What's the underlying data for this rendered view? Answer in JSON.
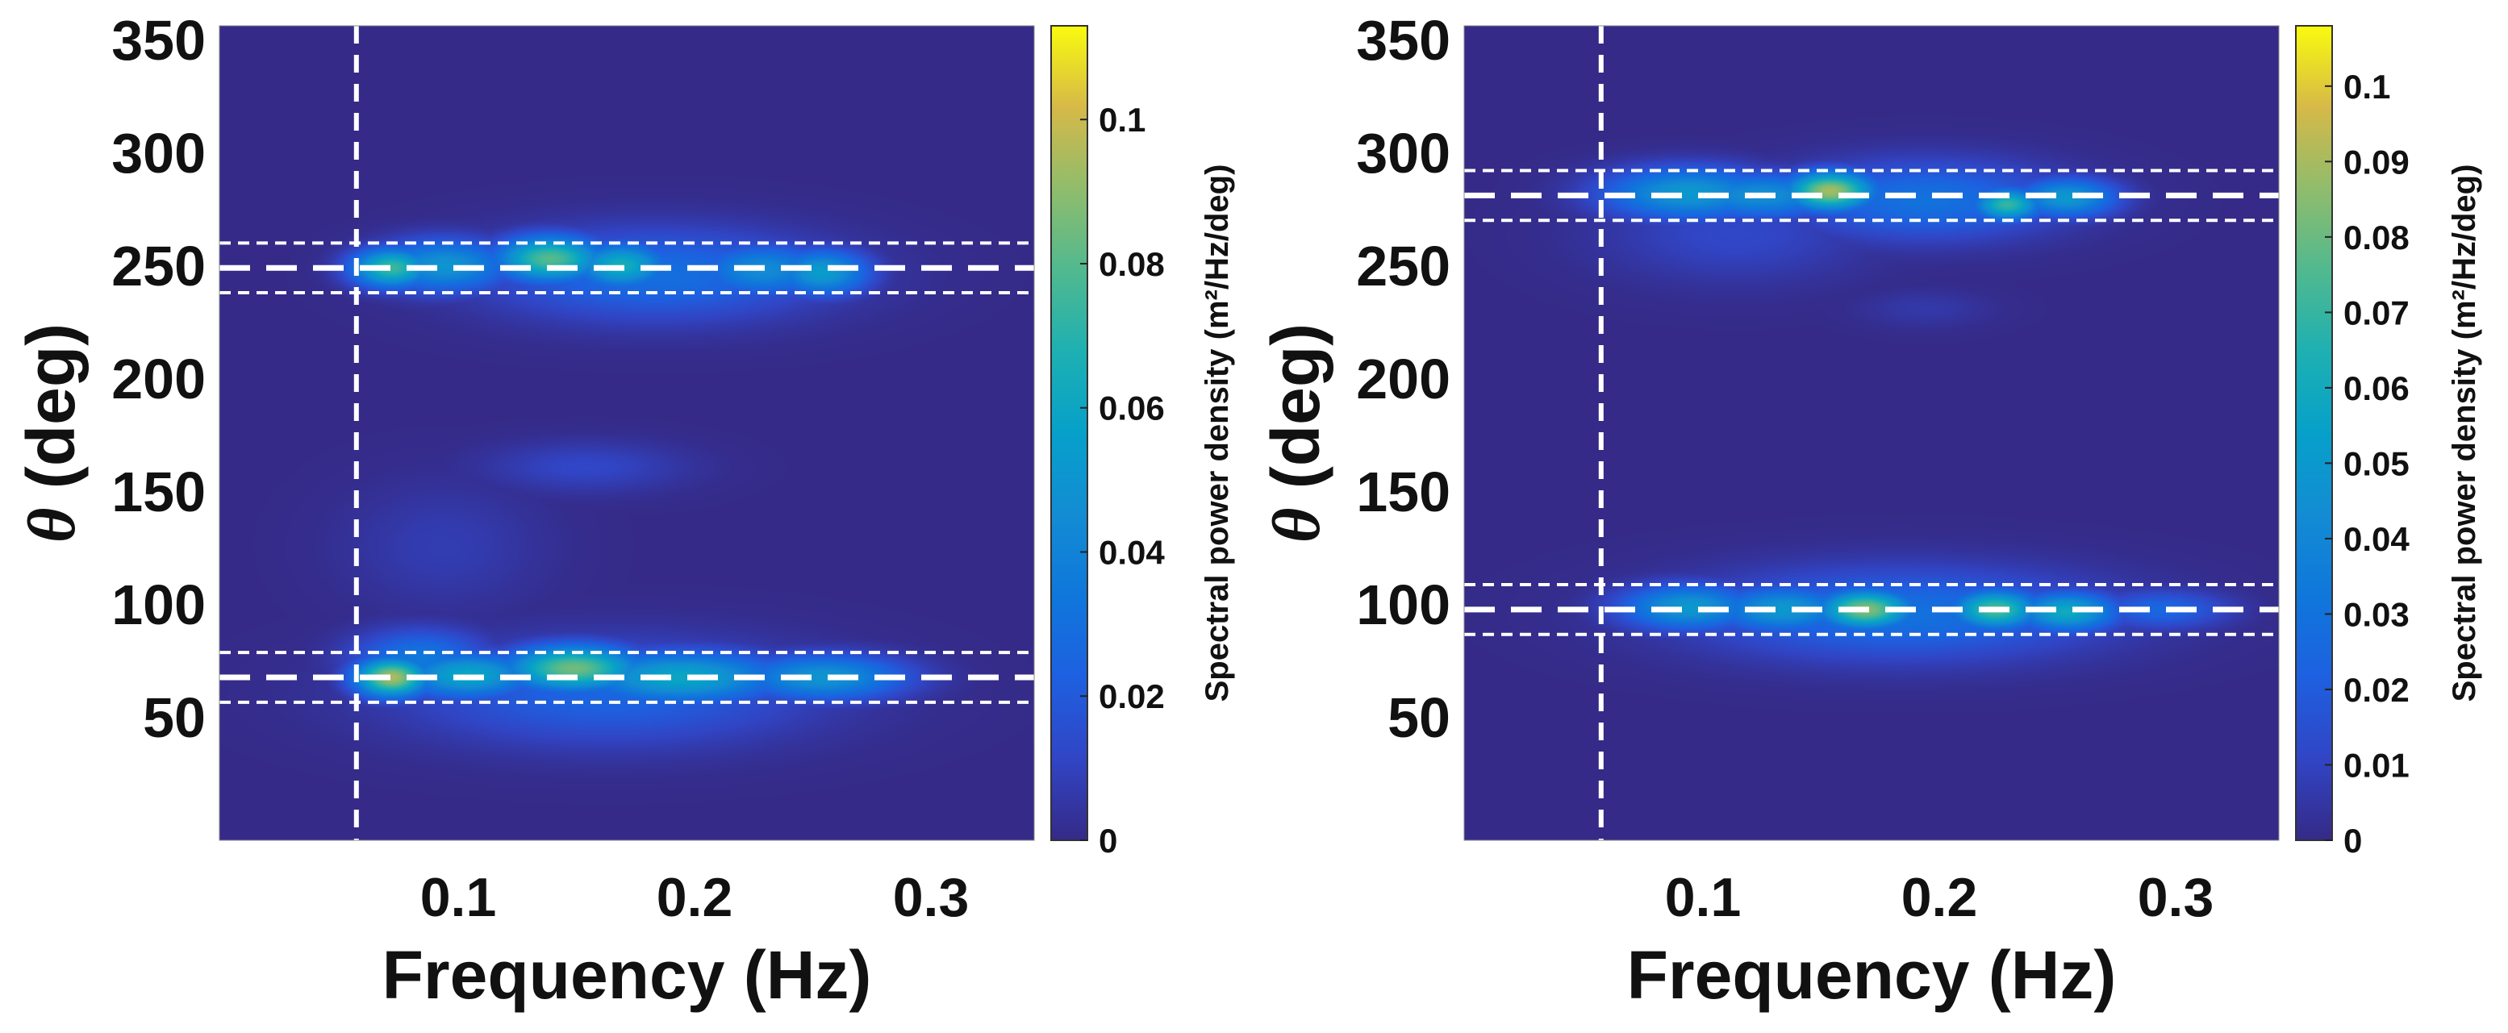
{
  "chart_data": [
    {
      "type": "heatmap",
      "title": "",
      "xlabel": "Frequency (Hz)",
      "ylabel_symbol": "θ",
      "ylabel_rest": " (deg)",
      "xlim": [
        0.005,
        0.35
      ],
      "ylim": [
        0,
        360
      ],
      "x_ticks": [
        0.1,
        0.2,
        0.3
      ],
      "x_tick_labels": [
        "0.1",
        "0.2",
        "0.3"
      ],
      "y_ticks": [
        50,
        100,
        150,
        200,
        250,
        300,
        350
      ],
      "y_tick_labels": [
        "50",
        "100",
        "150",
        "200",
        "250",
        "300",
        "350"
      ],
      "background": "#352a87",
      "cmin": 0,
      "cmax": 0.113,
      "colorbar": {
        "label": "Spectral power density (m²/Hz/deg)",
        "ticks": [
          0,
          0.02,
          0.04,
          0.06,
          0.08,
          0.1
        ],
        "tick_labels": [
          "0",
          "0.02",
          "0.04",
          "0.06",
          "0.08",
          "0.1"
        ]
      },
      "ref_lines": {
        "vertical_x": 0.063,
        "directions": [
          {
            "center": 253,
            "lower": 242,
            "upper": 264
          },
          {
            "center": 72,
            "lower": 61,
            "upper": 83
          }
        ]
      },
      "peaks": [
        {
          "f": 0.078,
          "theta": 253,
          "value": 0.075,
          "sf": 0.012,
          "st": 6
        },
        {
          "f": 0.1,
          "theta": 254,
          "value": 0.05,
          "sf": 0.02,
          "st": 8
        },
        {
          "f": 0.145,
          "theta": 257,
          "value": 0.08,
          "sf": 0.016,
          "st": 7
        },
        {
          "f": 0.175,
          "theta": 254,
          "value": 0.065,
          "sf": 0.014,
          "st": 7
        },
        {
          "f": 0.235,
          "theta": 252,
          "value": 0.045,
          "sf": 0.02,
          "st": 8
        },
        {
          "f": 0.26,
          "theta": 251,
          "value": 0.055,
          "sf": 0.014,
          "st": 7
        },
        {
          "f": 0.19,
          "theta": 250,
          "value": 0.03,
          "sf": 0.05,
          "st": 14
        },
        {
          "f": 0.078,
          "theta": 72,
          "value": 0.095,
          "sf": 0.011,
          "st": 6
        },
        {
          "f": 0.11,
          "theta": 73,
          "value": 0.06,
          "sf": 0.02,
          "st": 7
        },
        {
          "f": 0.155,
          "theta": 76,
          "value": 0.085,
          "sf": 0.02,
          "st": 7
        },
        {
          "f": 0.2,
          "theta": 72,
          "value": 0.06,
          "sf": 0.03,
          "st": 8
        },
        {
          "f": 0.26,
          "theta": 72,
          "value": 0.05,
          "sf": 0.025,
          "st": 7
        },
        {
          "f": 0.17,
          "theta": 65,
          "value": 0.025,
          "sf": 0.06,
          "st": 16
        },
        {
          "f": 0.09,
          "theta": 80,
          "value": 0.035,
          "sf": 0.02,
          "st": 9
        },
        {
          "f": 0.16,
          "theta": 165,
          "value": 0.012,
          "sf": 0.03,
          "st": 8
        },
        {
          "f": 0.1,
          "theta": 130,
          "value": 0.008,
          "sf": 0.03,
          "st": 20
        }
      ]
    },
    {
      "type": "heatmap",
      "title": "",
      "xlabel": "Frequency (Hz)",
      "ylabel_symbol": "θ",
      "ylabel_rest": " (deg)",
      "xlim": [
        0.005,
        0.35
      ],
      "ylim": [
        0,
        360
      ],
      "x_ticks": [
        0.1,
        0.2,
        0.3
      ],
      "x_tick_labels": [
        "0.1",
        "0.2",
        "0.3"
      ],
      "y_ticks": [
        50,
        100,
        150,
        200,
        250,
        300,
        350
      ],
      "y_tick_labels": [
        "50",
        "100",
        "150",
        "200",
        "250",
        "300",
        "350"
      ],
      "background": "#352a87",
      "cmin": 0,
      "cmax": 0.108,
      "colorbar": {
        "label": "Spectral power density (m²/Hz/deg)",
        "ticks": [
          0,
          0.01,
          0.02,
          0.03,
          0.04,
          0.05,
          0.06,
          0.07,
          0.08,
          0.09,
          0.1
        ],
        "tick_labels": [
          "0",
          "0.01",
          "0.02",
          "0.03",
          "0.04",
          "0.05",
          "0.06",
          "0.07",
          "0.08",
          "0.09",
          "0.1"
        ]
      },
      "ref_lines": {
        "vertical_x": 0.063,
        "directions": [
          {
            "center": 285,
            "lower": 274,
            "upper": 296
          },
          {
            "center": 102,
            "lower": 91,
            "upper": 113
          }
        ]
      },
      "peaks": [
        {
          "f": 0.1,
          "theta": 286,
          "value": 0.05,
          "sf": 0.025,
          "st": 8
        },
        {
          "f": 0.16,
          "theta": 287,
          "value": 0.09,
          "sf": 0.013,
          "st": 6
        },
        {
          "f": 0.13,
          "theta": 285,
          "value": 0.045,
          "sf": 0.025,
          "st": 7
        },
        {
          "f": 0.235,
          "theta": 281,
          "value": 0.07,
          "sf": 0.01,
          "st": 5
        },
        {
          "f": 0.26,
          "theta": 284,
          "value": 0.05,
          "sf": 0.015,
          "st": 6
        },
        {
          "f": 0.2,
          "theta": 283,
          "value": 0.03,
          "sf": 0.04,
          "st": 12
        },
        {
          "f": 0.12,
          "theta": 268,
          "value": 0.012,
          "sf": 0.04,
          "st": 15
        },
        {
          "f": 0.1,
          "theta": 103,
          "value": 0.05,
          "sf": 0.02,
          "st": 7
        },
        {
          "f": 0.14,
          "theta": 102,
          "value": 0.05,
          "sf": 0.02,
          "st": 7
        },
        {
          "f": 0.175,
          "theta": 102,
          "value": 0.085,
          "sf": 0.014,
          "st": 6
        },
        {
          "f": 0.23,
          "theta": 102,
          "value": 0.075,
          "sf": 0.013,
          "st": 6
        },
        {
          "f": 0.26,
          "theta": 101,
          "value": 0.06,
          "sf": 0.015,
          "st": 6
        },
        {
          "f": 0.19,
          "theta": 100,
          "value": 0.03,
          "sf": 0.06,
          "st": 14
        },
        {
          "f": 0.3,
          "theta": 102,
          "value": 0.025,
          "sf": 0.02,
          "st": 6
        },
        {
          "f": 0.2,
          "theta": 235,
          "value": 0.006,
          "sf": 0.02,
          "st": 6
        }
      ]
    }
  ]
}
